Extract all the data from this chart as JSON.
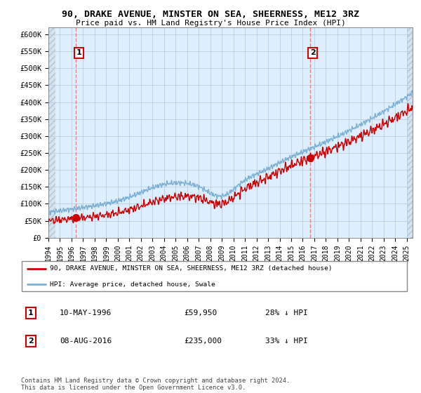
{
  "title": "90, DRAKE AVENUE, MINSTER ON SEA, SHEERNESS, ME12 3RZ",
  "subtitle": "Price paid vs. HM Land Registry's House Price Index (HPI)",
  "ylabel_values": [
    "£0",
    "£50K",
    "£100K",
    "£150K",
    "£200K",
    "£250K",
    "£300K",
    "£350K",
    "£400K",
    "£450K",
    "£500K",
    "£550K",
    "£600K"
  ],
  "yticks": [
    0,
    50000,
    100000,
    150000,
    200000,
    250000,
    300000,
    350000,
    400000,
    450000,
    500000,
    550000,
    600000
  ],
  "xlim_start": 1994.0,
  "xlim_end": 2025.5,
  "ylim_min": 0,
  "ylim_max": 620000,
  "purchase1_x": 1996.37,
  "purchase1_y": 59950,
  "purchase2_x": 2016.62,
  "purchase2_y": 235000,
  "purchase1_label": "1",
  "purchase2_label": "2",
  "purchase1_date": "10-MAY-1996",
  "purchase1_price": "£59,950",
  "purchase1_hpi": "28% ↓ HPI",
  "purchase2_date": "08-AUG-2016",
  "purchase2_price": "£235,000",
  "purchase2_hpi": "33% ↓ HPI",
  "legend_line1": "90, DRAKE AVENUE, MINSTER ON SEA, SHEERNESS, ME12 3RZ (detached house)",
  "legend_line2": "HPI: Average price, detached house, Swale",
  "footer": "Contains HM Land Registry data © Crown copyright and database right 2024.\nThis data is licensed under the Open Government Licence v3.0.",
  "red_color": "#cc0000",
  "blue_color": "#7bafd4",
  "vline_color": "#e87070",
  "bg_color": "#ddeeff"
}
